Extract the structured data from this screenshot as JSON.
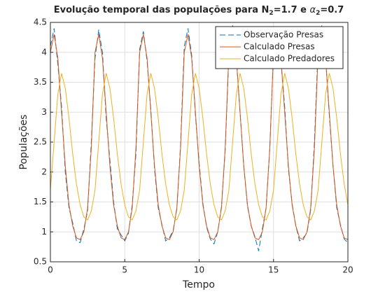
{
  "chart_data": {
    "type": "line",
    "title": [
      "Evolução temporal das populações para N",
      "2",
      "=1.7 e ",
      "α",
      "2",
      "=0.7"
    ],
    "xlabel": "Tempo",
    "ylabel": "Populações",
    "xlim": [
      0,
      20
    ],
    "ylim": [
      0.5,
      4.5
    ],
    "xticks": [
      0,
      5,
      10,
      15,
      20
    ],
    "yticks": [
      0.5,
      1,
      1.5,
      2,
      2.5,
      3,
      3.5,
      4,
      4.5
    ],
    "grid": true,
    "legend": "northeast",
    "x": [
      0,
      0.25,
      0.5,
      0.75,
      1,
      1.25,
      1.5,
      1.75,
      2,
      2.25,
      2.5,
      2.75,
      3,
      3.25,
      3.5,
      3.75,
      4,
      4.25,
      4.5,
      4.75,
      5,
      5.25,
      5.5,
      5.75,
      6,
      6.25,
      6.5,
      6.75,
      7,
      7.25,
      7.5,
      7.75,
      8,
      8.25,
      8.5,
      8.75,
      9,
      9.25,
      9.5,
      9.75,
      10,
      10.25,
      10.5,
      10.75,
      11,
      11.25,
      11.5,
      11.75,
      12,
      12.25,
      12.5,
      12.75,
      13,
      13.25,
      13.5,
      13.75,
      14,
      14.25,
      14.5,
      14.75,
      15,
      15.25,
      15.5,
      15.75,
      16,
      16.25,
      16.5,
      16.75,
      17,
      17.25,
      17.5,
      17.75,
      18,
      18.25,
      18.5,
      18.75,
      19,
      19.25,
      19.5,
      19.75,
      20
    ],
    "series": [
      {
        "name": "Observação Presas",
        "color": "#0072bd",
        "dash": true,
        "values": [
          4.1,
          4.4,
          3.8,
          3.1,
          2.0,
          1.4,
          1.15,
          0.85,
          0.82,
          1.05,
          1.35,
          2.5,
          3.9,
          4.38,
          4.0,
          2.9,
          2.2,
          1.5,
          1.05,
          0.95,
          0.85,
          0.98,
          1.45,
          2.3,
          4.05,
          4.35,
          3.85,
          3.05,
          2.05,
          1.4,
          1.12,
          0.85,
          0.9,
          1.02,
          1.38,
          2.45,
          4.1,
          4.4,
          3.95,
          2.95,
          2.15,
          1.48,
          1.08,
          0.88,
          0.8,
          1.0,
          1.42,
          2.35,
          3.95,
          4.45,
          3.9,
          3.0,
          2.1,
          1.43,
          1.1,
          0.92,
          0.68,
          1.05,
          1.4,
          2.4,
          4.0,
          4.4,
          3.85,
          3.1,
          2.05,
          1.47,
          1.1,
          0.85,
          0.9,
          0.98,
          1.37,
          2.5,
          4.1,
          4.45,
          3.9,
          2.95,
          2.1,
          1.4,
          1.12,
          0.88,
          0.82
        ]
      },
      {
        "name": "Calculado Presas",
        "color": "#d95319",
        "dash": false,
        "values": [
          4.0,
          4.3,
          3.9,
          3.0,
          2.1,
          1.45,
          1.1,
          0.9,
          0.87,
          1.0,
          1.4,
          2.4,
          4.0,
          4.3,
          3.9,
          3.0,
          2.1,
          1.45,
          1.1,
          0.9,
          0.87,
          1.0,
          1.4,
          2.4,
          4.0,
          4.3,
          3.9,
          3.0,
          2.1,
          1.45,
          1.1,
          0.9,
          0.87,
          1.0,
          1.4,
          2.4,
          4.0,
          4.3,
          3.9,
          3.0,
          2.1,
          1.45,
          1.1,
          0.9,
          0.87,
          1.0,
          1.4,
          2.4,
          4.0,
          4.3,
          3.9,
          3.0,
          2.1,
          1.45,
          1.1,
          0.9,
          0.87,
          1.0,
          1.4,
          2.4,
          4.0,
          4.3,
          3.9,
          3.0,
          2.1,
          1.45,
          1.1,
          0.9,
          0.87,
          1.0,
          1.4,
          2.4,
          4.0,
          4.3,
          3.9,
          3.0,
          2.1,
          1.45,
          1.1,
          0.9,
          0.87
        ]
      },
      {
        "name": "Calculado Predadores",
        "color": "#edb120",
        "dash": false,
        "values": [
          1.7,
          2.5,
          3.3,
          3.65,
          3.4,
          2.9,
          2.3,
          1.8,
          1.45,
          1.25,
          1.2,
          1.35,
          1.7,
          2.5,
          3.3,
          3.65,
          3.4,
          2.9,
          2.3,
          1.8,
          1.45,
          1.25,
          1.2,
          1.35,
          1.7,
          2.5,
          3.3,
          3.65,
          3.4,
          2.9,
          2.3,
          1.8,
          1.45,
          1.25,
          1.2,
          1.35,
          1.7,
          2.5,
          3.3,
          3.65,
          3.4,
          2.9,
          2.3,
          1.8,
          1.45,
          1.25,
          1.2,
          1.35,
          1.7,
          2.5,
          3.3,
          3.65,
          3.4,
          2.9,
          2.3,
          1.8,
          1.45,
          1.25,
          1.2,
          1.35,
          1.7,
          2.5,
          3.3,
          3.65,
          3.4,
          2.9,
          2.3,
          1.8,
          1.45,
          1.25,
          1.2,
          1.35,
          1.7,
          2.5,
          3.3,
          3.65,
          3.4,
          2.9,
          2.3,
          1.8,
          1.45
        ]
      }
    ]
  }
}
